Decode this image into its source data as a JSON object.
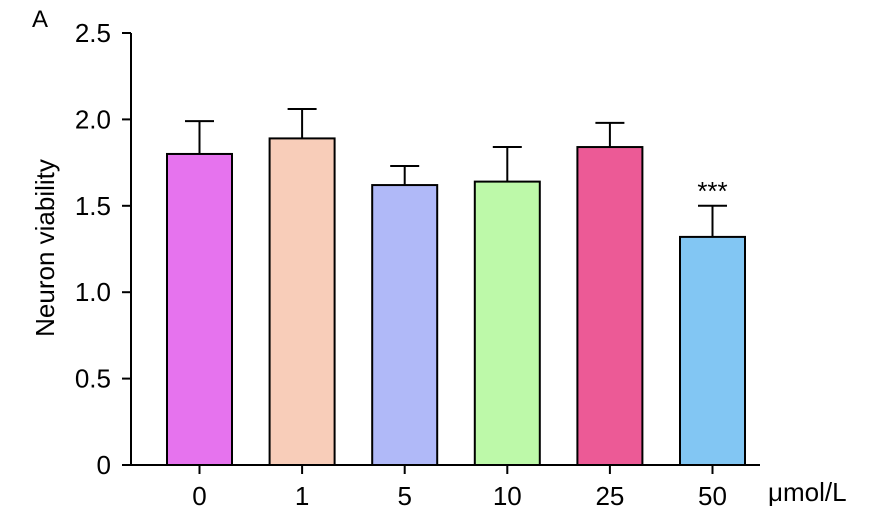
{
  "panel_label": "A",
  "chart_data": {
    "type": "bar",
    "categories": [
      "0",
      "1",
      "5",
      "10",
      "25",
      "50"
    ],
    "values": [
      1.8,
      1.89,
      1.62,
      1.64,
      1.84,
      1.32
    ],
    "errors": [
      0.19,
      0.17,
      0.11,
      0.2,
      0.14,
      0.18
    ],
    "colors": [
      "#e673ee",
      "#f8cdb9",
      "#b0b9f8",
      "#bdf9a9",
      "#ec5a96",
      "#82c6f3"
    ],
    "significance": [
      "",
      "",
      "",
      "",
      "",
      "***"
    ],
    "title": "",
    "xlabel": "μmol/L",
    "ylabel": "Neuron viability",
    "ylim": [
      0,
      2.5
    ],
    "yticks": [
      "0",
      "0.5",
      "1.0",
      "1.5",
      "2.0",
      "2.5"
    ],
    "grid": false,
    "legend": "none"
  }
}
